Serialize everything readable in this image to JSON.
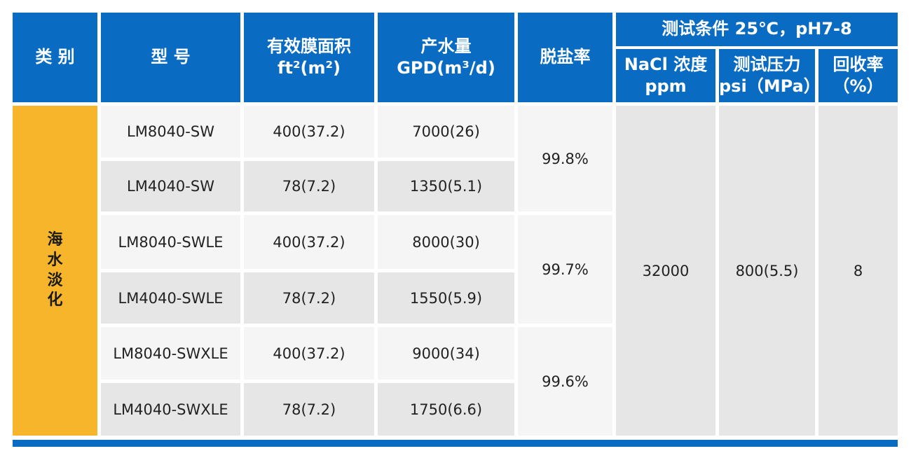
{
  "table": {
    "headers": {
      "category": "类 别",
      "model": "型 号",
      "area_line1": "有效膜面积",
      "area_line2": "ft²(m²)",
      "flow_line1": "产水量",
      "flow_line2": "GPD(m³/d)",
      "rejection": "脱盐率",
      "test_conditions": "测试条件 25℃，pH7-8",
      "nacl_line1": "NaCl 浓度",
      "nacl_line2": "ppm",
      "pressure_line1": "测试压力",
      "pressure_line2": "psi（MPa）",
      "recovery_line1": "回收率",
      "recovery_line2": "（%）"
    },
    "category_chars": [
      "海",
      "水",
      "淡",
      "化"
    ],
    "rows": [
      {
        "model": "LM8040-SW",
        "area": "400(37.2)",
        "flow": "7000(26)"
      },
      {
        "model": "LM4040-SW",
        "area": "78(7.2)",
        "flow": "1350(5.1)"
      },
      {
        "model": "LM8040-SWLE",
        "area": "400(37.2)",
        "flow": "8000(30)"
      },
      {
        "model": "LM4040-SWLE",
        "area": "78(7.2)",
        "flow": "1550(5.9)"
      },
      {
        "model": "LM8040-SWXLE",
        "area": "400(37.2)",
        "flow": "9000(34)"
      },
      {
        "model": "LM4040-SWXLE",
        "area": "78(7.2)",
        "flow": "1750(6.6)"
      }
    ],
    "rejection_values": [
      "99.8%",
      "99.7%",
      "99.6%"
    ],
    "nacl_value": "32000",
    "pressure_value": "800(5.5)",
    "recovery_value": "8",
    "colors": {
      "header_bg": "#0a6bc2",
      "category_bg": "#f6b52b",
      "row_light": "#f5f5f5",
      "row_dark": "#e6e6e6"
    }
  }
}
